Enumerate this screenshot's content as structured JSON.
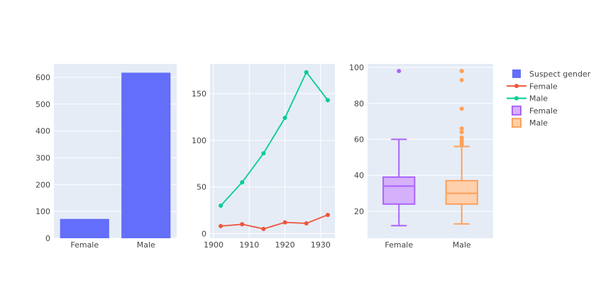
{
  "chart_data": [
    {
      "type": "bar",
      "categories": [
        "Female",
        "Male"
      ],
      "values": [
        72,
        617
      ],
      "ylim": [
        0,
        650
      ],
      "yticks": [
        0,
        100,
        200,
        300,
        400,
        500,
        600
      ],
      "grid": true,
      "series_name": "Suspect gender",
      "color": "#636efa"
    },
    {
      "type": "line",
      "xlim": [
        1899,
        1934
      ],
      "ylim": [
        -5,
        182
      ],
      "xticks": [
        1900,
        1910,
        1920,
        1930
      ],
      "yticks": [
        0,
        50,
        100,
        150
      ],
      "grid": true,
      "series": [
        {
          "name": "Female",
          "color": "#ef553b",
          "x": [
            1902,
            1908,
            1914,
            1920,
            1926,
            1932
          ],
          "y": [
            8,
            10,
            5,
            12,
            11,
            20
          ]
        },
        {
          "name": "Male",
          "color": "#00cc96",
          "x": [
            1902,
            1908,
            1914,
            1920,
            1926,
            1932
          ],
          "y": [
            30,
            55,
            86,
            124,
            173,
            143
          ]
        }
      ]
    },
    {
      "type": "box",
      "categories": [
        "Female",
        "Male"
      ],
      "ylim": [
        5,
        102
      ],
      "yticks": [
        20,
        40,
        60,
        80,
        100
      ],
      "grid": true,
      "boxes": [
        {
          "name": "Female",
          "color": "#ab63fa",
          "fill": "#d5b1fc",
          "min": 12,
          "q1": 24,
          "median": 34,
          "q3": 39,
          "max": 60,
          "outliers": [
            98
          ]
        },
        {
          "name": "Male",
          "color": "#ffa15a",
          "fill": "#ffd0ac",
          "min": 13,
          "q1": 24,
          "median": 30,
          "q3": 37,
          "max": 56,
          "outliers": [
            57,
            58,
            59,
            60,
            61,
            64,
            66,
            77,
            93,
            98,
            98
          ]
        }
      ]
    }
  ],
  "legend": {
    "placement": "right",
    "items": [
      {
        "label": "Suspect gender",
        "symbol": "square",
        "color": "#636efa"
      },
      {
        "label": "Female",
        "symbol": "line-marker",
        "color": "#ef553b"
      },
      {
        "label": "Male",
        "symbol": "line-marker",
        "color": "#00cc96"
      },
      {
        "label": "Female",
        "symbol": "box",
        "color": "#ab63fa",
        "fill": "#d5b1fc"
      },
      {
        "label": "Male",
        "symbol": "box",
        "color": "#ffa15a",
        "fill": "#ffd0ac"
      }
    ]
  }
}
